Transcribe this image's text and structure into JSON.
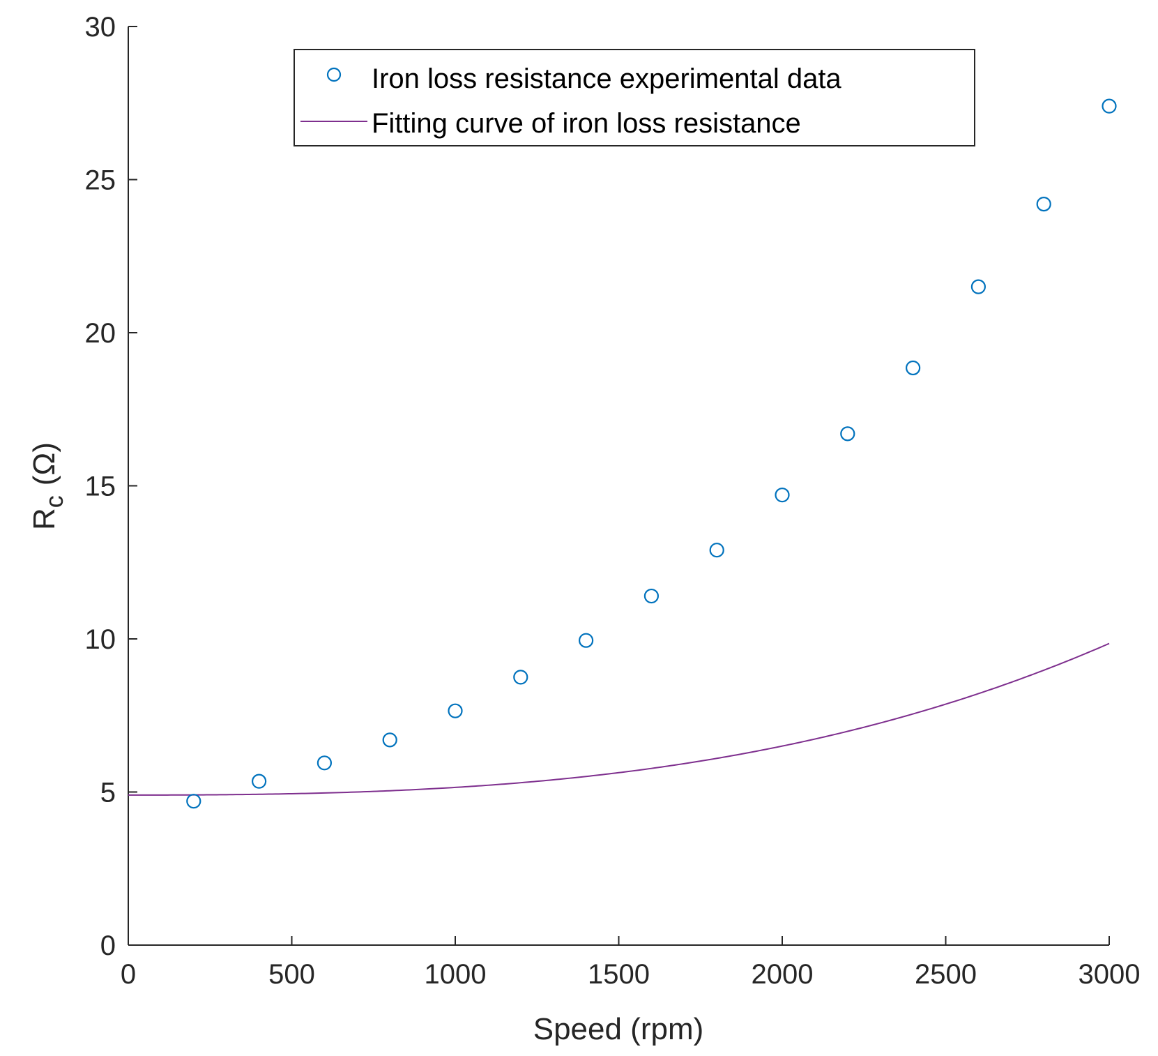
{
  "chart_data": {
    "type": "scatter",
    "xlabel": "Speed (rpm)",
    "ylabel": {
      "main": "R",
      "subscript": "c",
      "unit": "(Ω)"
    },
    "xlim": [
      0,
      3000
    ],
    "ylim": [
      0,
      30
    ],
    "xticks": [
      0,
      500,
      1000,
      1500,
      2000,
      2500,
      3000
    ],
    "yticks": [
      0,
      5,
      10,
      15,
      20,
      25,
      30
    ],
    "xtick_labels": [
      "0",
      "500",
      "1000",
      "1500",
      "2000",
      "2500",
      "3000"
    ],
    "ytick_labels": [
      "0",
      "5",
      "10",
      "15",
      "20",
      "25",
      "30"
    ],
    "grid": false,
    "legend_position": "top-center",
    "series": [
      {
        "name": "Iron loss resistance experimental data",
        "type": "scatter",
        "marker": "circle",
        "color": "#0072BD",
        "x": [
          200,
          400,
          600,
          800,
          1000,
          1200,
          1400,
          1600,
          1800,
          2000,
          2200,
          2400,
          2600,
          2800,
          3000
        ],
        "y": [
          4.7,
          5.35,
          5.95,
          6.7,
          7.65,
          8.75,
          9.95,
          11.4,
          12.9,
          14.7,
          16.7,
          18.85,
          21.5,
          24.2,
          27.4
        ]
      },
      {
        "name": "Fitting curve of iron loss resistance",
        "type": "line",
        "color": "#7E2F8E",
        "equation": "y = 4.9 + 0.0000001 * x^2 + 0.00000000015 * x^3",
        "coefficients": {
          "c0": 4.9,
          "c2": 1e-07,
          "c3": 1.5e-10
        }
      }
    ]
  }
}
